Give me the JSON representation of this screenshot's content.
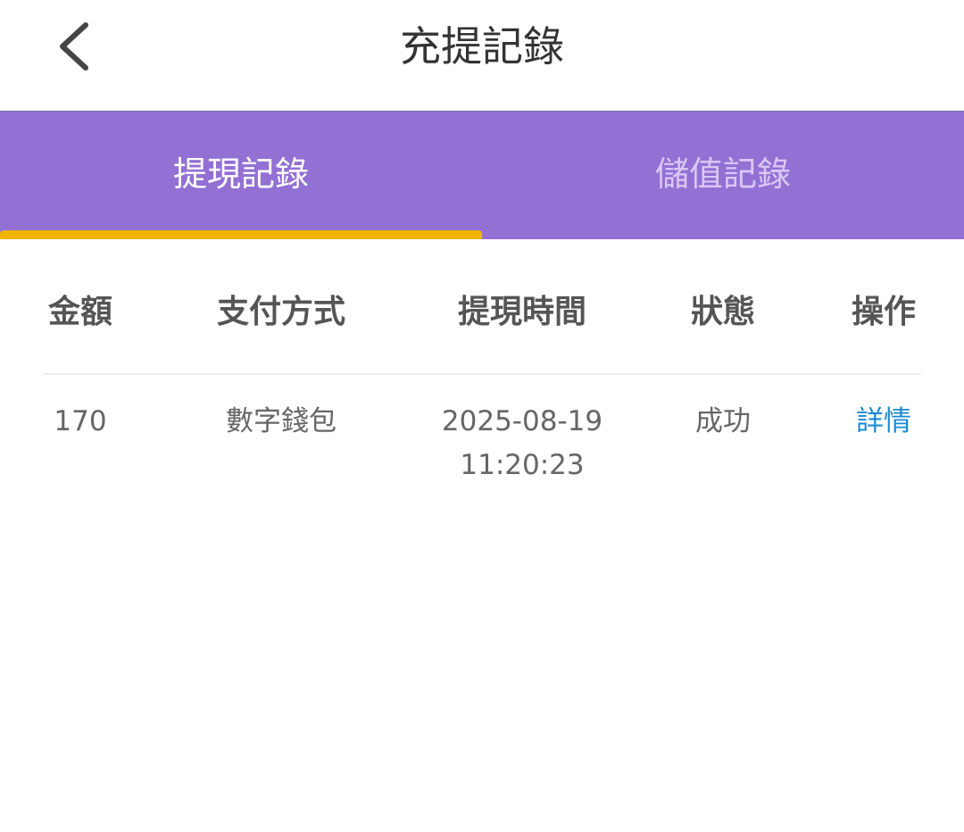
{
  "header": {
    "title": "充提記錄",
    "back_icon": "chevron-left-icon"
  },
  "tabs": [
    {
      "label": "提現記錄",
      "active": true
    },
    {
      "label": "儲值記錄",
      "active": false
    }
  ],
  "colors": {
    "tab_bar": "#9370d4",
    "indicator": "#f0b400",
    "link": "#1a8ad4"
  },
  "table": {
    "columns": [
      "金額",
      "支付方式",
      "提現時間",
      "狀態",
      "操作"
    ],
    "rows": [
      {
        "amount": "170",
        "method": "數字錢包",
        "date": "2025-08-19",
        "time": "11:20:23",
        "status": "成功",
        "action": "詳情"
      }
    ]
  }
}
